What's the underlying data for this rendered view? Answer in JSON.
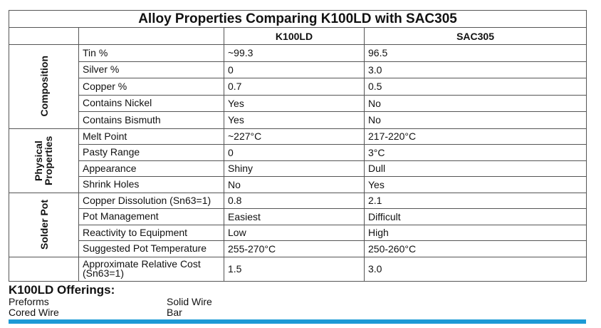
{
  "title": "Alloy Properties Comparing K100LD with SAC305",
  "columns": [
    "K100LD",
    "SAC305"
  ],
  "groups": [
    {
      "label": "Composition",
      "rows": [
        [
          "Tin %",
          "~99.3",
          "96.5"
        ],
        [
          "Silver %",
          "0",
          "3.0"
        ],
        [
          "Copper %",
          "0.7",
          "0.5"
        ],
        [
          "Contains Nickel",
          "Yes",
          "No"
        ],
        [
          "Contains Bismuth",
          "Yes",
          "No"
        ]
      ]
    },
    {
      "label": "Physical Properties",
      "rows": [
        [
          "Melt Point",
          "~227°C",
          "217-220°C"
        ],
        [
          "Pasty Range",
          "0",
          "3°C"
        ],
        [
          "Appearance",
          "Shiny",
          "Dull"
        ],
        [
          "Shrink Holes",
          "No",
          "Yes"
        ]
      ]
    },
    {
      "label": "Solder Pot",
      "rows": [
        [
          "Copper Dissolution (Sn63=1)",
          "0.8",
          "2.1"
        ],
        [
          "Pot Management",
          "Easiest",
          "Difficult"
        ],
        [
          "Reactivity to Equipment",
          "Low",
          "High"
        ],
        [
          "Suggested Pot Temperature",
          "255-270°C",
          "250-260°C"
        ]
      ]
    }
  ],
  "footer_row": [
    "Approximate Relative Cost (Sn63=1)",
    "1.5",
    "3.0"
  ],
  "offerings": {
    "title": "K100LD Offerings:",
    "items": [
      "Preforms",
      "Cored Wire",
      "Solid Wire",
      "Bar"
    ]
  }
}
